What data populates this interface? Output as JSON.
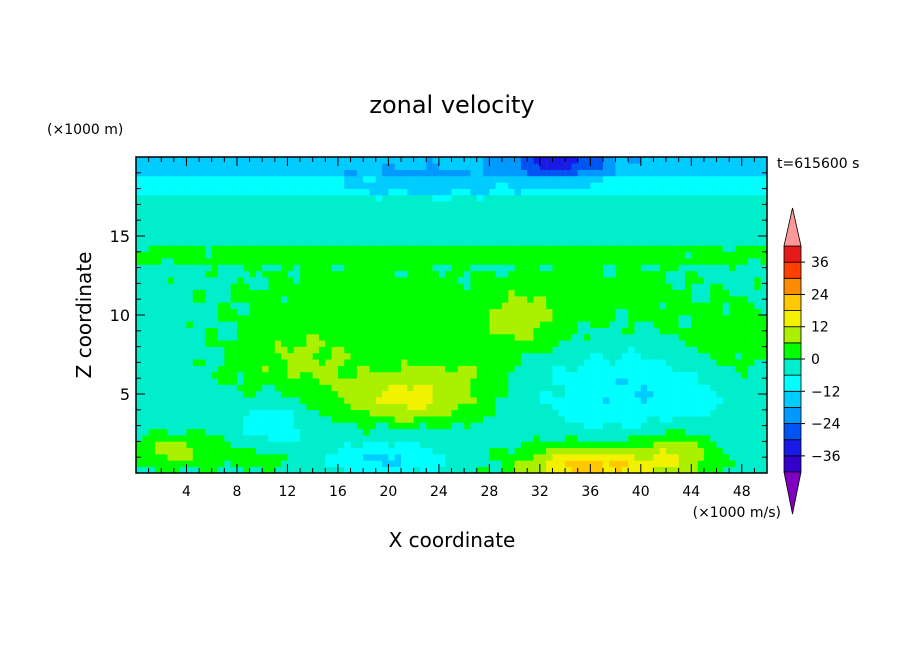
{
  "chart_data": {
    "type": "heatmap",
    "title": "zonal velocity",
    "xlabel": "X coordinate",
    "ylabel": "Z coordinate",
    "x_unit_label": "(×1000 m/s)",
    "y_unit_label": "(×1000 m)",
    "time_label": "t=615600 s",
    "xlim": [
      0,
      50
    ],
    "ylim": [
      0,
      20
    ],
    "x_ticks": [
      4,
      8,
      12,
      16,
      20,
      24,
      28,
      32,
      36,
      40,
      44,
      48
    ],
    "y_ticks": [
      5,
      10,
      15
    ],
    "colorbar": {
      "levels": [
        -42,
        -36,
        -30,
        -24,
        -18,
        -12,
        -6,
        0,
        6,
        12,
        18,
        24,
        30,
        36,
        42
      ],
      "colors": [
        "#7f00bf",
        "#3300cc",
        "#1a1ae6",
        "#0055f2",
        "#0099ff",
        "#00ccff",
        "#00ffff",
        "#00eecc",
        "#00ff00",
        "#aaf000",
        "#f2f200",
        "#ffc800",
        "#ff8c00",
        "#ff4000",
        "#e61a1a",
        "#ff9999"
      ],
      "tick_labels": [
        "36",
        "24",
        "12",
        "0",
        "−12",
        "−24",
        "−36"
      ],
      "tick_values": [
        36,
        24,
        12,
        0,
        -12,
        -24,
        -36
      ]
    },
    "field_features": [
      {
        "x": 21,
        "z": 4.6,
        "value": 12
      },
      {
        "x": 36,
        "z": 0.5,
        "value": 18
      },
      {
        "x": 12,
        "z": 6.5,
        "value": 10
      },
      {
        "x": 33.5,
        "z": 19.8,
        "value": -20
      },
      {
        "x": 38,
        "z": 5,
        "value": -8
      },
      {
        "x": 11,
        "z": 3,
        "value": -7
      },
      {
        "x": 18,
        "z": 11,
        "value": 3
      },
      {
        "x": 44,
        "z": 10.5,
        "value": 2
      },
      {
        "x": 30,
        "z": 9.5,
        "value": 9
      }
    ]
  }
}
